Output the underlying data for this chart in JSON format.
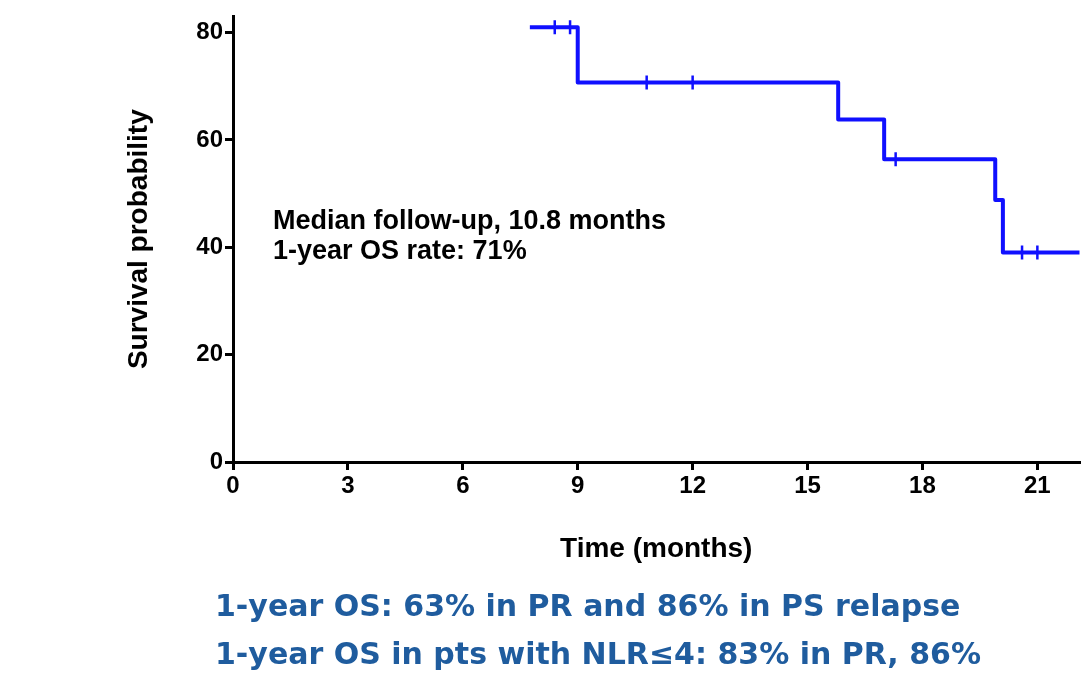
{
  "chart_data": {
    "type": "step",
    "xlabel": "Time (months)",
    "ylabel": "Survival probability",
    "xlim": [
      0,
      22.1
    ],
    "xticks": [
      0,
      3,
      6,
      9,
      12,
      15,
      18,
      21
    ],
    "ylim": [
      0,
      83
    ],
    "yticks": [
      0,
      20,
      40,
      60,
      80
    ],
    "grid": false,
    "legend": false,
    "marker": "none",
    "series": [
      {
        "color": "#1010ff",
        "x": [
          7.75,
          9.0,
          15.8,
          17.0,
          19.9,
          20.1,
          22.1
        ],
        "values": [
          81,
          70.7,
          63.8,
          56.4,
          48.8,
          39,
          39
        ]
      },
      {
        "type": "scatter",
        "marker": "cross",
        "color": "#1010ff",
        "x": [
          8.4,
          8.8,
          10.8,
          12.0,
          17.3,
          20.6,
          21.0
        ],
        "values": [
          81,
          81,
          70.7,
          70.7,
          56.4,
          39,
          39
        ]
      }
    ],
    "annotations": [
      "Median follow-up, 10.8 months\n1-year OS rate: 71%",
      "1-year OS: 63% in PR and 86% in PS relapse",
      "1-year OS in pts with NLR≤4: 83% in PR, 86%"
    ]
  }
}
